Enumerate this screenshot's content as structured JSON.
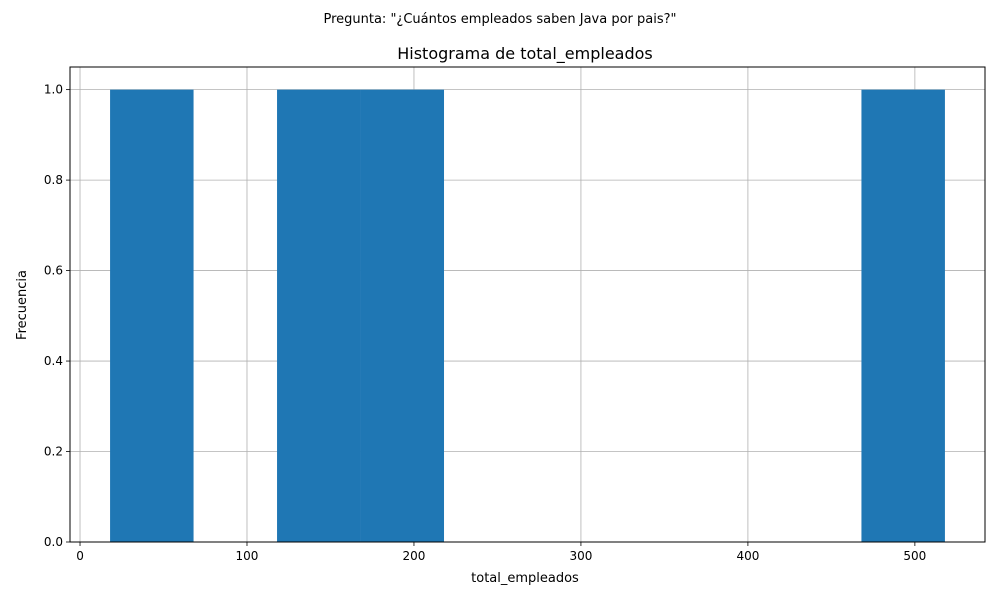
{
  "suptitle": "Pregunta: \"¿Cuántos empleados saben Java por pais?\"",
  "chart_data": {
    "type": "bar",
    "title": "Histograma de total_empleados",
    "xlabel": "total_empleados",
    "ylabel": "Frecuencia",
    "xlim": [
      -6,
      542
    ],
    "ylim": [
      0,
      1.05
    ],
    "xticks": [
      0,
      100,
      200,
      300,
      400,
      500
    ],
    "yticks": [
      0.0,
      0.2,
      0.4,
      0.6,
      0.8,
      1.0
    ],
    "xtick_labels": [
      "0",
      "100",
      "200",
      "300",
      "400",
      "500"
    ],
    "ytick_labels": [
      "0.0",
      "0.2",
      "0.4",
      "0.6",
      "0.8",
      "1.0"
    ],
    "grid": true,
    "bar_color": "#1f77b4",
    "bins": [
      {
        "start": 18,
        "end": 68,
        "count": 1
      },
      {
        "start": 68,
        "end": 118,
        "count": 0
      },
      {
        "start": 118,
        "end": 168,
        "count": 1
      },
      {
        "start": 168,
        "end": 218,
        "count": 1
      },
      {
        "start": 218,
        "end": 268,
        "count": 0
      },
      {
        "start": 268,
        "end": 318,
        "count": 0
      },
      {
        "start": 318,
        "end": 368,
        "count": 0
      },
      {
        "start": 368,
        "end": 418,
        "count": 0
      },
      {
        "start": 418,
        "end": 468,
        "count": 0
      },
      {
        "start": 468,
        "end": 518,
        "count": 1
      }
    ]
  }
}
